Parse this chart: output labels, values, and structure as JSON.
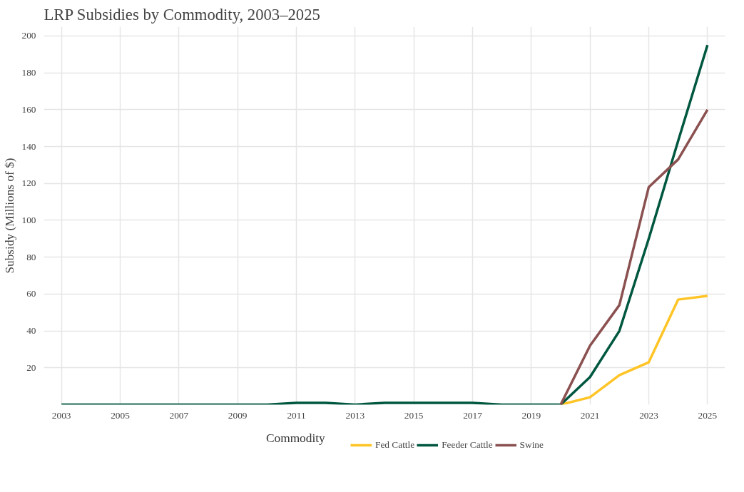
{
  "chart_data": {
    "type": "line",
    "title": "LRP Subsidies by Commodity, 2003–2025",
    "ylabel": "Subsidy (Millions of $)",
    "legend_title": "Commodity",
    "legend": "bottom",
    "grid": true,
    "x": [
      2003,
      2004,
      2005,
      2006,
      2007,
      2008,
      2009,
      2010,
      2011,
      2012,
      2013,
      2014,
      2015,
      2016,
      2017,
      2018,
      2019,
      2020,
      2021,
      2022,
      2023,
      2024,
      2025
    ],
    "xlim": [
      2002.4,
      2025.6
    ],
    "xticks": [
      2003,
      2005,
      2007,
      2009,
      2011,
      2013,
      2015,
      2017,
      2019,
      2021,
      2023,
      2025
    ],
    "ylim": [
      0,
      205
    ],
    "yticks": [
      20,
      40,
      60,
      80,
      100,
      120,
      140,
      160,
      180,
      200
    ],
    "series": [
      {
        "name": "Fed Cattle",
        "color": "#ffc425",
        "values": [
          null,
          null,
          null,
          null,
          null,
          null,
          null,
          null,
          null,
          null,
          null,
          null,
          null,
          null,
          null,
          null,
          null,
          0,
          4,
          16,
          23,
          57,
          59
        ]
      },
      {
        "name": "Feeder Cattle",
        "color": "#00573f",
        "values": [
          0,
          0,
          0,
          0,
          0,
          0,
          0,
          0,
          1,
          1,
          0,
          1,
          1,
          1,
          1,
          0,
          0,
          0,
          15,
          40,
          90,
          143,
          195
        ]
      },
      {
        "name": "Swine",
        "color": "#8b5050",
        "values": [
          null,
          null,
          null,
          null,
          null,
          null,
          null,
          null,
          null,
          null,
          null,
          null,
          null,
          null,
          null,
          null,
          null,
          0,
          32,
          54,
          118,
          133,
          160
        ]
      }
    ]
  }
}
